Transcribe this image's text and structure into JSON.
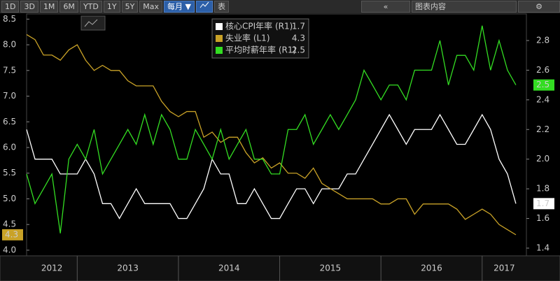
{
  "toolbar": {
    "ranges": [
      "1D",
      "3D",
      "1M",
      "6M",
      "YTD",
      "1Y",
      "5Y",
      "Max"
    ],
    "frequency": "每月 ▼",
    "table": "表",
    "chart_content": "图表内容"
  },
  "chart_data": {
    "type": "line",
    "x": [
      2012.5,
      2012.583,
      2012.667,
      2012.75,
      2012.833,
      2012.917,
      2013,
      2013.083,
      2013.167,
      2013.25,
      2013.333,
      2013.417,
      2013.5,
      2013.583,
      2013.667,
      2013.75,
      2013.833,
      2013.917,
      2014,
      2014.083,
      2014.167,
      2014.25,
      2014.333,
      2014.417,
      2014.5,
      2014.583,
      2014.667,
      2014.75,
      2014.833,
      2014.917,
      2015,
      2015.083,
      2015.167,
      2015.25,
      2015.333,
      2015.417,
      2015.5,
      2015.583,
      2015.667,
      2015.75,
      2015.833,
      2015.917,
      2016,
      2016.083,
      2016.167,
      2016.25,
      2016.333,
      2016.417,
      2016.5,
      2016.583,
      2016.667,
      2016.75,
      2016.833,
      2016.917,
      2017,
      2017.083,
      2017.167,
      2017.25,
      2017.333
    ],
    "series": [
      {
        "name": "核心CPI年率 (R1)",
        "color": "#ffffff",
        "axis": "y2",
        "values": [
          2.2,
          2.0,
          2.0,
          2.0,
          1.9,
          1.9,
          1.9,
          2.0,
          1.9,
          1.7,
          1.7,
          1.6,
          1.7,
          1.8,
          1.7,
          1.7,
          1.7,
          1.7,
          1.6,
          1.6,
          1.7,
          1.8,
          2.0,
          1.9,
          1.9,
          1.7,
          1.7,
          1.8,
          1.7,
          1.6,
          1.6,
          1.7,
          1.8,
          1.8,
          1.7,
          1.8,
          1.8,
          1.8,
          1.9,
          1.9,
          2.0,
          2.1,
          2.2,
          2.3,
          2.2,
          2.1,
          2.2,
          2.2,
          2.2,
          2.3,
          2.2,
          2.1,
          2.1,
          2.2,
          2.3,
          2.2,
          2.0,
          1.9,
          1.7
        ]
      },
      {
        "name": "失业率 (L1)",
        "color": "#c9a227",
        "axis": "y",
        "values": [
          8.2,
          8.1,
          7.8,
          7.8,
          7.7,
          7.9,
          8.0,
          7.7,
          7.5,
          7.6,
          7.5,
          7.5,
          7.3,
          7.2,
          7.2,
          7.2,
          6.9,
          6.7,
          6.6,
          6.7,
          6.7,
          6.2,
          6.3,
          6.1,
          6.2,
          6.2,
          5.9,
          5.7,
          5.8,
          5.6,
          5.7,
          5.5,
          5.5,
          5.4,
          5.6,
          5.3,
          5.2,
          5.1,
          5.0,
          5.0,
          5.0,
          5.0,
          4.9,
          4.9,
          5.0,
          5.0,
          4.7,
          4.9,
          4.9,
          4.9,
          4.9,
          4.8,
          4.6,
          4.7,
          4.8,
          4.7,
          4.5,
          4.4,
          4.3
        ]
      },
      {
        "name": "平均时薪年率 (R1)",
        "color": "#33dd22",
        "axis": "y2",
        "values": [
          1.9,
          1.7,
          1.8,
          1.9,
          1.5,
          2.0,
          2.1,
          2.0,
          2.2,
          1.9,
          2.0,
          2.1,
          2.2,
          2.1,
          2.3,
          2.1,
          2.3,
          2.2,
          2.0,
          2.0,
          2.2,
          2.1,
          2.0,
          2.2,
          2.0,
          2.1,
          2.2,
          2.0,
          2.0,
          1.9,
          1.9,
          2.2,
          2.2,
          2.3,
          2.1,
          2.2,
          2.3,
          2.2,
          2.3,
          2.4,
          2.6,
          2.5,
          2.4,
          2.5,
          2.5,
          2.4,
          2.6,
          2.6,
          2.6,
          2.8,
          2.5,
          2.7,
          2.7,
          2.6,
          2.9,
          2.6,
          2.8,
          2.6,
          2.5
        ]
      }
    ],
    "xlim": [
      2012.5,
      2017.437
    ],
    "xticks": [
      {
        "value": 2012,
        "label": "2012"
      },
      {
        "value": 2013,
        "label": "2013"
      },
      {
        "value": 2014,
        "label": "2014"
      },
      {
        "value": 2015,
        "label": "2015"
      },
      {
        "value": 2016,
        "label": "2016"
      },
      {
        "value": 2017,
        "label": "2017"
      }
    ],
    "ylim": [
      3.89,
      8.6
    ],
    "yticks": [
      {
        "value": 4,
        "label": "4.0"
      },
      4.5,
      {
        "value": 5,
        "label": "5.0"
      },
      5.5,
      {
        "value": 6,
        "label": "6.0"
      },
      6.5,
      {
        "value": 7,
        "label": "7.0"
      },
      7.5,
      {
        "value": 8,
        "label": "8.0"
      },
      8.5
    ],
    "y2lim": [
      1.348,
      2.979
    ],
    "y2ticks": [
      1.4,
      1.6,
      1.8,
      {
        "value": 2,
        "label": "2.0"
      },
      2.2,
      2.4,
      2.6,
      2.8
    ]
  }
}
